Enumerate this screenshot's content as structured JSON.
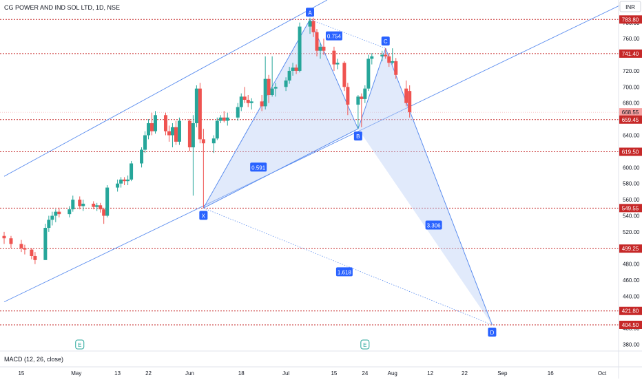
{
  "header": {
    "symbol_title": "CG POWER AND IND SOL LTD, 1D, NSE",
    "currency": "INR"
  },
  "indicator": {
    "label": "MACD (12, 26, close)"
  },
  "colors": {
    "up": "#26a69a",
    "down": "#ef5350",
    "pattern_line": "#5b8def",
    "pattern_fill": "#bcd0f7",
    "level_line": "#c62828",
    "label_bg": "#2962ff",
    "earnings": "#26a69a"
  },
  "chart_data": {
    "type": "candlestick",
    "title": "CG POWER AND IND SOL LTD, 1D, NSE",
    "y_axis": {
      "range": [
        372,
        808
      ],
      "ticks": [
        800,
        780,
        760,
        740,
        720,
        700,
        680,
        660,
        640,
        620,
        600,
        580,
        560,
        540,
        520,
        500,
        480,
        460,
        440,
        420,
        400,
        380
      ]
    },
    "x_axis": {
      "range": [
        "2024-04-10",
        "2024-10-07"
      ],
      "ticks": [
        {
          "date": "2024-04-15",
          "label": "15"
        },
        {
          "date": "2024-05-01",
          "label": "May"
        },
        {
          "date": "2024-05-13",
          "label": "13"
        },
        {
          "date": "2024-05-22",
          "label": "22"
        },
        {
          "date": "2024-06-03",
          "label": "Jun"
        },
        {
          "date": "2024-06-18",
          "label": "18"
        },
        {
          "date": "2024-07-01",
          "label": "Jul"
        },
        {
          "date": "2024-07-15",
          "label": "15"
        },
        {
          "date": "2024-07-24",
          "label": "24"
        },
        {
          "date": "2024-08-01",
          "label": "Aug"
        },
        {
          "date": "2024-08-12",
          "label": "12"
        },
        {
          "date": "2024-08-22",
          "label": "22"
        },
        {
          "date": "2024-09-02",
          "label": "Sep"
        },
        {
          "date": "2024-09-16",
          "label": "16"
        },
        {
          "date": "2024-10-01",
          "label": "Oct"
        }
      ]
    },
    "candles": [
      {
        "date": "2024-04-10",
        "o": 515,
        "h": 520,
        "l": 505,
        "c": 512
      },
      {
        "date": "2024-04-12",
        "o": 512,
        "h": 515,
        "l": 500,
        "c": 505
      },
      {
        "date": "2024-04-15",
        "o": 505,
        "h": 510,
        "l": 495,
        "c": 500
      },
      {
        "date": "2024-04-16",
        "o": 500,
        "h": 504,
        "l": 492,
        "c": 498
      },
      {
        "date": "2024-04-18",
        "o": 498,
        "h": 500,
        "l": 486,
        "c": 490
      },
      {
        "date": "2024-04-19",
        "o": 490,
        "h": 495,
        "l": 480,
        "c": 485
      },
      {
        "date": "2024-04-22",
        "o": 485,
        "h": 530,
        "l": 485,
        "c": 525
      },
      {
        "date": "2024-04-23",
        "o": 525,
        "h": 540,
        "l": 520,
        "c": 535
      },
      {
        "date": "2024-04-24",
        "o": 535,
        "h": 545,
        "l": 528,
        "c": 540
      },
      {
        "date": "2024-04-25",
        "o": 540,
        "h": 548,
        "l": 532,
        "c": 545
      },
      {
        "date": "2024-04-26",
        "o": 545,
        "h": 550,
        "l": 538,
        "c": 542
      },
      {
        "date": "2024-04-29",
        "o": 542,
        "h": 552,
        "l": 538,
        "c": 548
      },
      {
        "date": "2024-04-30",
        "o": 548,
        "h": 565,
        "l": 545,
        "c": 560
      },
      {
        "date": "2024-05-02",
        "o": 560,
        "h": 564,
        "l": 548,
        "c": 552
      },
      {
        "date": "2024-05-03",
        "o": 552,
        "h": 560,
        "l": 546,
        "c": 555
      },
      {
        "date": "2024-05-06",
        "o": 555,
        "h": 558,
        "l": 548,
        "c": 551
      },
      {
        "date": "2024-05-07",
        "o": 551,
        "h": 556,
        "l": 546,
        "c": 553
      },
      {
        "date": "2024-05-08",
        "o": 553,
        "h": 556,
        "l": 544,
        "c": 548
      },
      {
        "date": "2024-05-09",
        "o": 548,
        "h": 550,
        "l": 530,
        "c": 540
      },
      {
        "date": "2024-05-10",
        "o": 540,
        "h": 578,
        "l": 538,
        "c": 575
      },
      {
        "date": "2024-05-13",
        "o": 575,
        "h": 585,
        "l": 570,
        "c": 580
      },
      {
        "date": "2024-05-14",
        "o": 580,
        "h": 588,
        "l": 575,
        "c": 585
      },
      {
        "date": "2024-05-15",
        "o": 585,
        "h": 588,
        "l": 578,
        "c": 583
      },
      {
        "date": "2024-05-16",
        "o": 583,
        "h": 590,
        "l": 578,
        "c": 585
      },
      {
        "date": "2024-05-17",
        "o": 585,
        "h": 608,
        "l": 583,
        "c": 605
      },
      {
        "date": "2024-05-20",
        "o": 605,
        "h": 625,
        "l": 600,
        "c": 622
      },
      {
        "date": "2024-05-21",
        "o": 622,
        "h": 645,
        "l": 618,
        "c": 640
      },
      {
        "date": "2024-05-22",
        "o": 640,
        "h": 660,
        "l": 635,
        "c": 655
      },
      {
        "date": "2024-05-23",
        "o": 655,
        "h": 668,
        "l": 640,
        "c": 645
      },
      {
        "date": "2024-05-24",
        "o": 645,
        "h": 670,
        "l": 642,
        "c": 665
      },
      {
        "date": "2024-05-27",
        "o": 665,
        "h": 668,
        "l": 640,
        "c": 645
      },
      {
        "date": "2024-05-28",
        "o": 645,
        "h": 652,
        "l": 632,
        "c": 640
      },
      {
        "date": "2024-05-29",
        "o": 640,
        "h": 655,
        "l": 625,
        "c": 650
      },
      {
        "date": "2024-05-30",
        "o": 650,
        "h": 658,
        "l": 628,
        "c": 632
      },
      {
        "date": "2024-05-31",
        "o": 632,
        "h": 662,
        "l": 628,
        "c": 658
      },
      {
        "date": "2024-06-03",
        "o": 658,
        "h": 660,
        "l": 620,
        "c": 625
      },
      {
        "date": "2024-06-04",
        "o": 625,
        "h": 665,
        "l": 565,
        "c": 655
      },
      {
        "date": "2024-06-05",
        "o": 655,
        "h": 702,
        "l": 650,
        "c": 698
      },
      {
        "date": "2024-06-06",
        "o": 698,
        "h": 705,
        "l": 630,
        "c": 635
      },
      {
        "date": "2024-06-07",
        "o": 635,
        "h": 648,
        "l": 550,
        "c": 630
      },
      {
        "date": "2024-06-10",
        "o": 630,
        "h": 640,
        "l": 618,
        "c": 636
      },
      {
        "date": "2024-06-11",
        "o": 636,
        "h": 662,
        "l": 634,
        "c": 658
      },
      {
        "date": "2024-06-12",
        "o": 658,
        "h": 665,
        "l": 655,
        "c": 662
      },
      {
        "date": "2024-06-13",
        "o": 662,
        "h": 670,
        "l": 656,
        "c": 658
      },
      {
        "date": "2024-06-14",
        "o": 658,
        "h": 668,
        "l": 652,
        "c": 662
      },
      {
        "date": "2024-06-17",
        "o": 662,
        "h": 680,
        "l": 658,
        "c": 675
      },
      {
        "date": "2024-06-18",
        "o": 675,
        "h": 692,
        "l": 670,
        "c": 688
      },
      {
        "date": "2024-06-19",
        "o": 688,
        "h": 700,
        "l": 680,
        "c": 684
      },
      {
        "date": "2024-06-20",
        "o": 684,
        "h": 690,
        "l": 675,
        "c": 680
      },
      {
        "date": "2024-06-21",
        "o": 680,
        "h": 686,
        "l": 672,
        "c": 682
      },
      {
        "date": "2024-06-24",
        "o": 682,
        "h": 690,
        "l": 670,
        "c": 676
      },
      {
        "date": "2024-06-25",
        "o": 676,
        "h": 738,
        "l": 672,
        "c": 710
      },
      {
        "date": "2024-06-26",
        "o": 710,
        "h": 715,
        "l": 680,
        "c": 690
      },
      {
        "date": "2024-06-27",
        "o": 690,
        "h": 738,
        "l": 688,
        "c": 698
      },
      {
        "date": "2024-06-28",
        "o": 698,
        "h": 705,
        "l": 688,
        "c": 700
      },
      {
        "date": "2024-07-01",
        "o": 700,
        "h": 712,
        "l": 695,
        "c": 708
      },
      {
        "date": "2024-07-02",
        "o": 708,
        "h": 725,
        "l": 704,
        "c": 720
      },
      {
        "date": "2024-07-03",
        "o": 720,
        "h": 730,
        "l": 714,
        "c": 724
      },
      {
        "date": "2024-07-04",
        "o": 724,
        "h": 728,
        "l": 716,
        "c": 720
      },
      {
        "date": "2024-07-05",
        "o": 720,
        "h": 780,
        "l": 718,
        "c": 775
      },
      {
        "date": "2024-07-08",
        "o": 775,
        "h": 786,
        "l": 766,
        "c": 782
      },
      {
        "date": "2024-07-09",
        "o": 782,
        "h": 786,
        "l": 762,
        "c": 768
      },
      {
        "date": "2024-07-10",
        "o": 768,
        "h": 772,
        "l": 738,
        "c": 745
      },
      {
        "date": "2024-07-11",
        "o": 745,
        "h": 755,
        "l": 735,
        "c": 750
      },
      {
        "date": "2024-07-12",
        "o": 750,
        "h": 760,
        "l": 740,
        "c": 745
      },
      {
        "date": "2024-07-15",
        "o": 745,
        "h": 750,
        "l": 720,
        "c": 728
      },
      {
        "date": "2024-07-16",
        "o": 728,
        "h": 735,
        "l": 722,
        "c": 730
      },
      {
        "date": "2024-07-18",
        "o": 730,
        "h": 732,
        "l": 695,
        "c": 700
      },
      {
        "date": "2024-07-19",
        "o": 700,
        "h": 705,
        "l": 665,
        "c": 678
      },
      {
        "date": "2024-07-22",
        "o": 678,
        "h": 690,
        "l": 648,
        "c": 688
      },
      {
        "date": "2024-07-23",
        "o": 688,
        "h": 692,
        "l": 650,
        "c": 685
      },
      {
        "date": "2024-07-24",
        "o": 685,
        "h": 702,
        "l": 680,
        "c": 698
      },
      {
        "date": "2024-07-25",
        "o": 698,
        "h": 740,
        "l": 695,
        "c": 735
      },
      {
        "date": "2024-07-26",
        "o": 735,
        "h": 742,
        "l": 728,
        "c": 738
      },
      {
        "date": "2024-07-29",
        "o": 738,
        "h": 745,
        "l": 732,
        "c": 740
      },
      {
        "date": "2024-07-30",
        "o": 740,
        "h": 748,
        "l": 735,
        "c": 738
      },
      {
        "date": "2024-07-31",
        "o": 738,
        "h": 742,
        "l": 725,
        "c": 730
      },
      {
        "date": "2024-08-01",
        "o": 730,
        "h": 748,
        "l": 728,
        "c": 732
      },
      {
        "date": "2024-08-02",
        "o": 732,
        "h": 736,
        "l": 710,
        "c": 715
      },
      {
        "date": "2024-08-05",
        "o": 698,
        "h": 708,
        "l": 676,
        "c": 680
      },
      {
        "date": "2024-08-06",
        "o": 695,
        "h": 702,
        "l": 662,
        "c": 668.55
      }
    ],
    "price_levels": [
      {
        "value": 783.8,
        "label": "783.80"
      },
      {
        "value": 741.4,
        "label": "741.40"
      },
      {
        "value": 668.55,
        "label": "668.55"
      },
      {
        "value": 659.45,
        "label": "659.45"
      },
      {
        "value": 619.5,
        "label": "619.50"
      },
      {
        "value": 549.55,
        "label": "549.55"
      },
      {
        "value": 499.25,
        "label": "499.25"
      },
      {
        "value": 421.8,
        "label": "421.80"
      },
      {
        "value": 404.5,
        "label": "404.50"
      }
    ],
    "harmonic_pattern": {
      "points": [
        {
          "name": "X",
          "date": "2024-06-07",
          "price": 549.55
        },
        {
          "name": "A",
          "date": "2024-07-08",
          "price": 783.8
        },
        {
          "name": "B",
          "date": "2024-07-22",
          "price": 648
        },
        {
          "name": "C",
          "date": "2024-07-30",
          "price": 748
        },
        {
          "name": "D",
          "date": "2024-08-30",
          "price": 404.5
        }
      ],
      "ratios": [
        {
          "label": "0.591",
          "date": "2024-06-23",
          "price": 600
        },
        {
          "label": "0.754",
          "date": "2024-07-15",
          "price": 763
        },
        {
          "label": "3.306",
          "date": "2024-08-13",
          "price": 528
        },
        {
          "label": "1.618",
          "date": "2024-07-18",
          "price": 470
        }
      ]
    },
    "channel_lines": [
      {
        "from": {
          "date": "2024-04-10",
          "price": 589
        },
        "to": {
          "date": "2024-07-13",
          "price": 808
        }
      },
      {
        "from": {
          "date": "2024-04-10",
          "price": 433
        },
        "to": {
          "date": "2024-10-06",
          "price": 801
        }
      }
    ],
    "earnings_markers": [
      {
        "date": "2024-05-02",
        "label": "E"
      },
      {
        "date": "2024-07-24",
        "label": "E"
      }
    ]
  }
}
